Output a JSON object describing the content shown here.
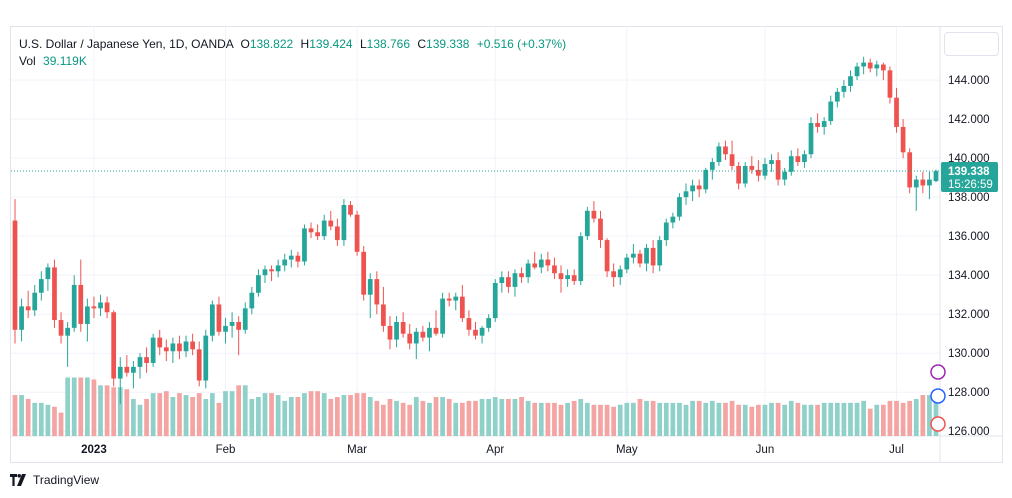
{
  "legend": {
    "symbol": "U.S. Dollar / Japanese Yen, 1D, OANDA",
    "o_label": "O",
    "o_value": "138.822",
    "h_label": "H",
    "h_value": "139.424",
    "l_label": "L",
    "l_value": "138.766",
    "c_label": "C",
    "c_value": "139.338",
    "change": "+0.516 (+0.37%)",
    "vol_label": "Vol",
    "vol_value": "39.119K"
  },
  "footer": {
    "brand": "TradingView",
    "logo_icon": "tradingview-logo-icon"
  },
  "colors": {
    "up": "#26a69a",
    "down": "#ef5350",
    "vol_up": "#8fd1c9",
    "vol_down": "#f4a5a3",
    "label_bg": "#26a69a"
  },
  "chart_data": {
    "type": "candlestick",
    "y_ticks": [
      "126.000",
      "128.000",
      "130.000",
      "132.000",
      "134.000",
      "136.000",
      "138.000",
      "140.000",
      "142.000",
      "144.000"
    ],
    "x_ticks": [
      "2023",
      "Feb",
      "Mar",
      "Apr",
      "May",
      "Jun",
      "Jul"
    ],
    "ylim": [
      125.5,
      145.8
    ],
    "last_price": "139.338",
    "countdown": "15:26:59",
    "candles": [
      [
        136.8,
        137.9,
        130.5,
        131.2
      ],
      [
        131.2,
        132.8,
        130.6,
        132.4
      ],
      [
        132.4,
        133.2,
        131.8,
        132.2
      ],
      [
        132.2,
        133.5,
        131.9,
        133.1
      ],
      [
        133.1,
        134.2,
        132.7,
        133.8
      ],
      [
        133.8,
        134.6,
        133.2,
        134.4
      ],
      [
        134.4,
        134.8,
        131.3,
        131.7
      ],
      [
        131.7,
        132.1,
        130.5,
        130.9
      ],
      [
        130.9,
        131.6,
        129.3,
        131.3
      ],
      [
        131.3,
        134.0,
        131.1,
        133.5
      ],
      [
        133.5,
        134.8,
        131.1,
        131.5
      ],
      [
        131.5,
        132.8,
        130.6,
        132.4
      ],
      [
        132.4,
        132.9,
        131.8,
        132.3
      ],
      [
        132.3,
        133.0,
        131.9,
        132.6
      ],
      [
        132.6,
        132.9,
        131.8,
        132.1
      ],
      [
        132.1,
        132.2,
        128.3,
        128.7
      ],
      [
        128.7,
        129.8,
        127.4,
        129.3
      ],
      [
        129.3,
        129.9,
        128.8,
        129.0
      ],
      [
        129.0,
        129.6,
        128.2,
        129.3
      ],
      [
        129.3,
        130.0,
        128.7,
        129.8
      ],
      [
        129.8,
        130.3,
        129.0,
        129.5
      ],
      [
        129.5,
        131.0,
        129.3,
        130.8
      ],
      [
        130.8,
        131.2,
        129.9,
        130.3
      ],
      [
        130.3,
        130.7,
        129.6,
        130.1
      ],
      [
        130.1,
        130.8,
        129.5,
        130.5
      ],
      [
        130.5,
        130.9,
        129.7,
        130.1
      ],
      [
        130.1,
        130.9,
        129.8,
        130.6
      ],
      [
        130.6,
        131.0,
        129.9,
        130.2
      ],
      [
        130.2,
        130.6,
        128.3,
        128.6
      ],
      [
        128.6,
        131.2,
        128.2,
        130.9
      ],
      [
        130.9,
        132.7,
        130.6,
        132.5
      ],
      [
        132.5,
        132.9,
        130.9,
        131.1
      ],
      [
        131.1,
        131.8,
        130.5,
        131.4
      ],
      [
        131.4,
        132.1,
        130.8,
        131.6
      ],
      [
        131.6,
        131.9,
        129.9,
        131.2
      ],
      [
        131.2,
        132.6,
        131.0,
        132.3
      ],
      [
        132.3,
        133.4,
        132.0,
        133.1
      ],
      [
        133.1,
        134.3,
        132.9,
        134.0
      ],
      [
        134.0,
        134.5,
        133.6,
        134.3
      ],
      [
        134.3,
        134.5,
        133.7,
        134.2
      ],
      [
        134.2,
        134.8,
        133.9,
        134.5
      ],
      [
        134.5,
        135.1,
        134.2,
        134.8
      ],
      [
        134.8,
        135.3,
        134.4,
        135.0
      ],
      [
        135.0,
        135.2,
        134.4,
        134.7
      ],
      [
        134.7,
        136.6,
        134.5,
        136.4
      ],
      [
        136.4,
        136.7,
        135.9,
        136.2
      ],
      [
        136.2,
        136.6,
        135.8,
        136.0
      ],
      [
        136.0,
        137.1,
        135.8,
        136.8
      ],
      [
        136.8,
        137.3,
        136.3,
        136.5
      ],
      [
        136.5,
        136.9,
        135.5,
        135.8
      ],
      [
        135.8,
        137.9,
        135.5,
        137.6
      ],
      [
        137.6,
        137.8,
        137.0,
        137.1
      ],
      [
        137.1,
        137.3,
        135.0,
        135.2
      ],
      [
        135.2,
        135.5,
        132.7,
        133.0
      ],
      [
        133.0,
        134.1,
        131.8,
        133.8
      ],
      [
        133.8,
        134.2,
        132.0,
        132.5
      ],
      [
        132.5,
        133.4,
        131.1,
        131.4
      ],
      [
        131.4,
        131.9,
        130.2,
        130.7
      ],
      [
        130.7,
        131.9,
        130.3,
        131.6
      ],
      [
        131.6,
        132.1,
        130.8,
        131.0
      ],
      [
        131.0,
        131.5,
        130.2,
        130.5
      ],
      [
        130.5,
        131.3,
        129.7,
        131.1
      ],
      [
        131.1,
        131.4,
        130.6,
        130.8
      ],
      [
        130.8,
        131.6,
        130.1,
        131.3
      ],
      [
        131.3,
        132.2,
        130.9,
        131.0
      ],
      [
        131.0,
        133.1,
        130.8,
        132.8
      ],
      [
        132.8,
        133.1,
        132.4,
        132.7
      ],
      [
        132.7,
        133.1,
        132.2,
        132.9
      ],
      [
        132.9,
        133.5,
        131.6,
        131.8
      ],
      [
        131.8,
        132.2,
        130.9,
        131.2
      ],
      [
        131.2,
        131.6,
        130.7,
        130.9
      ],
      [
        130.9,
        131.4,
        130.5,
        131.3
      ],
      [
        131.3,
        132.0,
        131.1,
        131.8
      ],
      [
        131.8,
        133.8,
        131.6,
        133.6
      ],
      [
        133.6,
        134.2,
        133.1,
        133.9
      ],
      [
        133.9,
        134.2,
        133.1,
        133.4
      ],
      [
        133.4,
        134.3,
        132.9,
        134.1
      ],
      [
        134.1,
        134.4,
        133.6,
        133.9
      ],
      [
        133.9,
        134.8,
        133.6,
        134.6
      ],
      [
        134.6,
        135.2,
        134.3,
        134.4
      ],
      [
        134.4,
        135.1,
        134.1,
        134.8
      ],
      [
        134.8,
        135.2,
        134.2,
        134.5
      ],
      [
        134.5,
        134.9,
        133.8,
        134.1
      ],
      [
        134.1,
        134.5,
        133.1,
        133.8
      ],
      [
        133.8,
        134.3,
        133.4,
        134.0
      ],
      [
        134.0,
        134.3,
        133.5,
        133.7
      ],
      [
        133.7,
        136.2,
        133.5,
        136.0
      ],
      [
        136.0,
        137.5,
        135.8,
        137.3
      ],
      [
        137.3,
        137.8,
        136.7,
        136.9
      ],
      [
        136.9,
        137.3,
        135.4,
        135.8
      ],
      [
        135.8,
        135.9,
        133.9,
        134.2
      ],
      [
        134.2,
        134.6,
        133.4,
        133.9
      ],
      [
        133.9,
        134.5,
        133.5,
        134.3
      ],
      [
        134.3,
        135.1,
        134.1,
        134.9
      ],
      [
        134.9,
        135.6,
        134.6,
        135.1
      ],
      [
        135.1,
        135.3,
        134.4,
        134.6
      ],
      [
        134.6,
        135.6,
        134.2,
        135.4
      ],
      [
        135.4,
        135.8,
        134.1,
        134.5
      ],
      [
        134.5,
        136.0,
        134.2,
        135.8
      ],
      [
        135.8,
        136.9,
        135.5,
        136.7
      ],
      [
        136.7,
        137.2,
        136.4,
        137.0
      ],
      [
        137.0,
        138.2,
        136.8,
        138.0
      ],
      [
        138.0,
        138.7,
        137.6,
        138.3
      ],
      [
        138.3,
        138.9,
        137.8,
        138.6
      ],
      [
        138.6,
        138.9,
        138.0,
        138.4
      ],
      [
        138.4,
        139.5,
        138.2,
        139.4
      ],
      [
        139.4,
        140.0,
        138.9,
        139.8
      ],
      [
        139.8,
        140.8,
        139.6,
        140.6
      ],
      [
        140.6,
        140.9,
        139.9,
        140.2
      ],
      [
        140.2,
        140.9,
        139.4,
        139.6
      ],
      [
        139.6,
        139.8,
        138.4,
        138.7
      ],
      [
        138.7,
        139.8,
        138.5,
        139.6
      ],
      [
        139.6,
        140.1,
        139.2,
        139.4
      ],
      [
        139.4,
        139.9,
        138.8,
        139.1
      ],
      [
        139.1,
        140.0,
        138.9,
        139.7
      ],
      [
        139.7,
        140.2,
        139.3,
        139.9
      ],
      [
        139.9,
        140.3,
        138.6,
        138.9
      ],
      [
        138.9,
        139.5,
        138.6,
        139.3
      ],
      [
        139.3,
        140.4,
        139.1,
        140.1
      ],
      [
        140.1,
        140.5,
        139.6,
        139.8
      ],
      [
        139.8,
        140.4,
        139.5,
        140.2
      ],
      [
        140.2,
        142.1,
        140.0,
        141.8
      ],
      [
        141.8,
        142.3,
        141.3,
        141.6
      ],
      [
        141.6,
        142.1,
        141.2,
        141.9
      ],
      [
        141.9,
        143.2,
        141.7,
        142.9
      ],
      [
        142.9,
        143.6,
        142.6,
        143.4
      ],
      [
        143.4,
        144.0,
        143.1,
        143.7
      ],
      [
        143.7,
        144.5,
        143.4,
        144.2
      ],
      [
        144.2,
        144.9,
        144.0,
        144.7
      ],
      [
        144.7,
        145.2,
        144.3,
        144.9
      ],
      [
        144.9,
        145.1,
        144.4,
        144.6
      ],
      [
        144.6,
        145.0,
        144.2,
        144.8
      ],
      [
        144.8,
        144.9,
        144.0,
        144.5
      ],
      [
        144.5,
        144.7,
        142.8,
        143.1
      ],
      [
        143.1,
        143.6,
        141.3,
        141.6
      ],
      [
        141.6,
        142.0,
        140.0,
        140.3
      ],
      [
        140.3,
        140.5,
        138.2,
        138.5
      ],
      [
        138.5,
        139.1,
        137.3,
        138.9
      ],
      [
        138.9,
        139.3,
        138.2,
        138.6
      ],
      [
        138.6,
        139.3,
        137.9,
        138.9
      ],
      [
        138.822,
        139.424,
        138.766,
        139.338
      ]
    ],
    "volume": [
      21,
      21,
      19,
      17,
      17,
      16,
      15,
      12,
      30,
      30,
      30,
      30,
      29,
      26,
      26,
      25,
      25,
      24,
      19,
      16,
      19,
      22,
      22,
      23,
      20,
      22,
      21,
      20,
      22,
      19,
      22,
      17,
      23,
      23,
      26,
      26,
      19,
      20,
      22,
      22,
      21,
      18,
      20,
      20,
      22,
      23,
      23,
      22,
      19,
      20,
      21,
      21,
      22,
      22,
      20,
      18,
      16,
      19,
      18,
      17,
      16,
      20,
      18,
      17,
      20,
      20,
      19,
      17,
      17,
      18,
      18,
      19,
      19,
      20,
      19,
      19,
      19,
      20,
      18,
      17,
      17,
      17,
      17,
      16,
      17,
      18,
      19,
      17,
      16,
      16,
      16,
      15,
      16,
      17,
      17,
      19,
      18,
      18,
      17,
      17,
      17,
      17,
      16,
      18,
      18,
      17,
      18,
      17,
      17,
      18,
      16,
      16,
      15,
      16,
      16,
      17,
      17,
      16,
      18,
      17,
      16,
      16,
      16,
      17,
      17,
      17,
      17,
      17,
      17,
      18,
      14,
      16,
      16,
      18,
      18,
      17,
      18,
      19,
      21,
      21,
      21
    ]
  }
}
